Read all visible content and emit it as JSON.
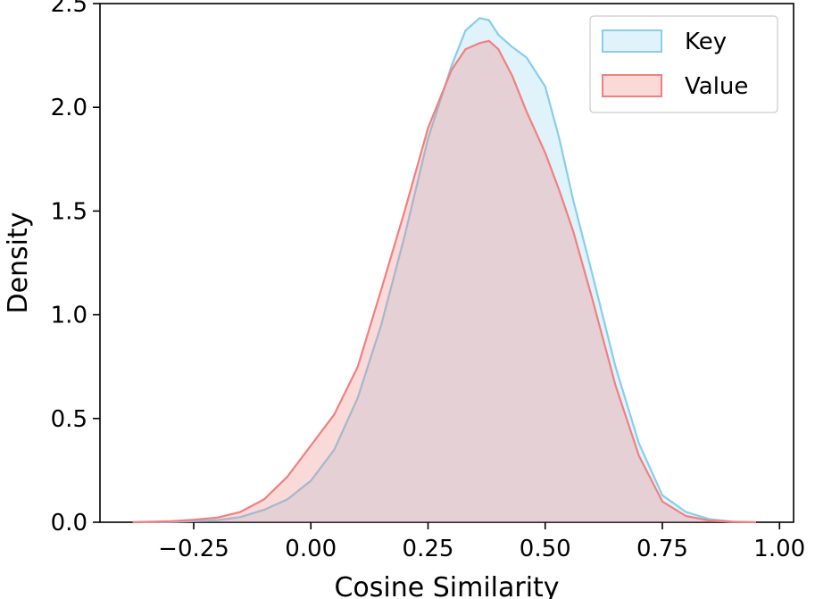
{
  "chart_data": {
    "type": "area",
    "title": "",
    "xlabel": "Cosine Similarity",
    "ylabel": "Density",
    "xlim": [
      -0.45,
      1.03
    ],
    "ylim": [
      0,
      2.5
    ],
    "xticks": [
      -0.25,
      0.0,
      0.25,
      0.5,
      0.75,
      1.0
    ],
    "xtick_labels": [
      "−0.25",
      "0.00",
      "0.25",
      "0.50",
      "0.75",
      "1.00"
    ],
    "yticks": [
      0.0,
      0.5,
      1.0,
      1.5,
      2.0,
      2.5
    ],
    "ytick_labels": [
      "0.0",
      "0.5",
      "1.0",
      "1.5",
      "2.0",
      "2.5"
    ],
    "grid": false,
    "legend_position": "top-right",
    "series": [
      {
        "name": "Key",
        "fill_color": "#87ceeb",
        "line_color": "#87ceeb",
        "fill_opacity": 0.25,
        "x": [
          -0.38,
          -0.3,
          -0.25,
          -0.2,
          -0.15,
          -0.1,
          -0.05,
          0.0,
          0.05,
          0.1,
          0.15,
          0.2,
          0.25,
          0.3,
          0.33,
          0.36,
          0.38,
          0.4,
          0.43,
          0.46,
          0.5,
          0.53,
          0.56,
          0.6,
          0.65,
          0.7,
          0.75,
          0.8,
          0.85,
          0.9,
          0.95
        ],
        "y": [
          0.0,
          0.002,
          0.005,
          0.01,
          0.025,
          0.06,
          0.11,
          0.2,
          0.35,
          0.6,
          0.95,
          1.38,
          1.85,
          2.2,
          2.37,
          2.43,
          2.42,
          2.35,
          2.29,
          2.24,
          2.1,
          1.85,
          1.55,
          1.2,
          0.75,
          0.38,
          0.13,
          0.05,
          0.015,
          0.003,
          0.0
        ]
      },
      {
        "name": "Value",
        "fill_color": "#f08080",
        "line_color": "#f08080",
        "fill_opacity": 0.3,
        "x": [
          -0.38,
          -0.3,
          -0.25,
          -0.2,
          -0.15,
          -0.1,
          -0.05,
          0.0,
          0.05,
          0.1,
          0.15,
          0.2,
          0.25,
          0.3,
          0.33,
          0.36,
          0.38,
          0.4,
          0.43,
          0.46,
          0.5,
          0.53,
          0.56,
          0.6,
          0.65,
          0.7,
          0.75,
          0.8,
          0.85,
          0.9,
          0.95
        ],
        "y": [
          0.0,
          0.005,
          0.012,
          0.022,
          0.05,
          0.11,
          0.22,
          0.37,
          0.52,
          0.75,
          1.12,
          1.5,
          1.9,
          2.18,
          2.28,
          2.31,
          2.32,
          2.28,
          2.15,
          1.98,
          1.78,
          1.6,
          1.4,
          1.08,
          0.66,
          0.32,
          0.1,
          0.03,
          0.008,
          0.002,
          0.0
        ]
      }
    ]
  }
}
